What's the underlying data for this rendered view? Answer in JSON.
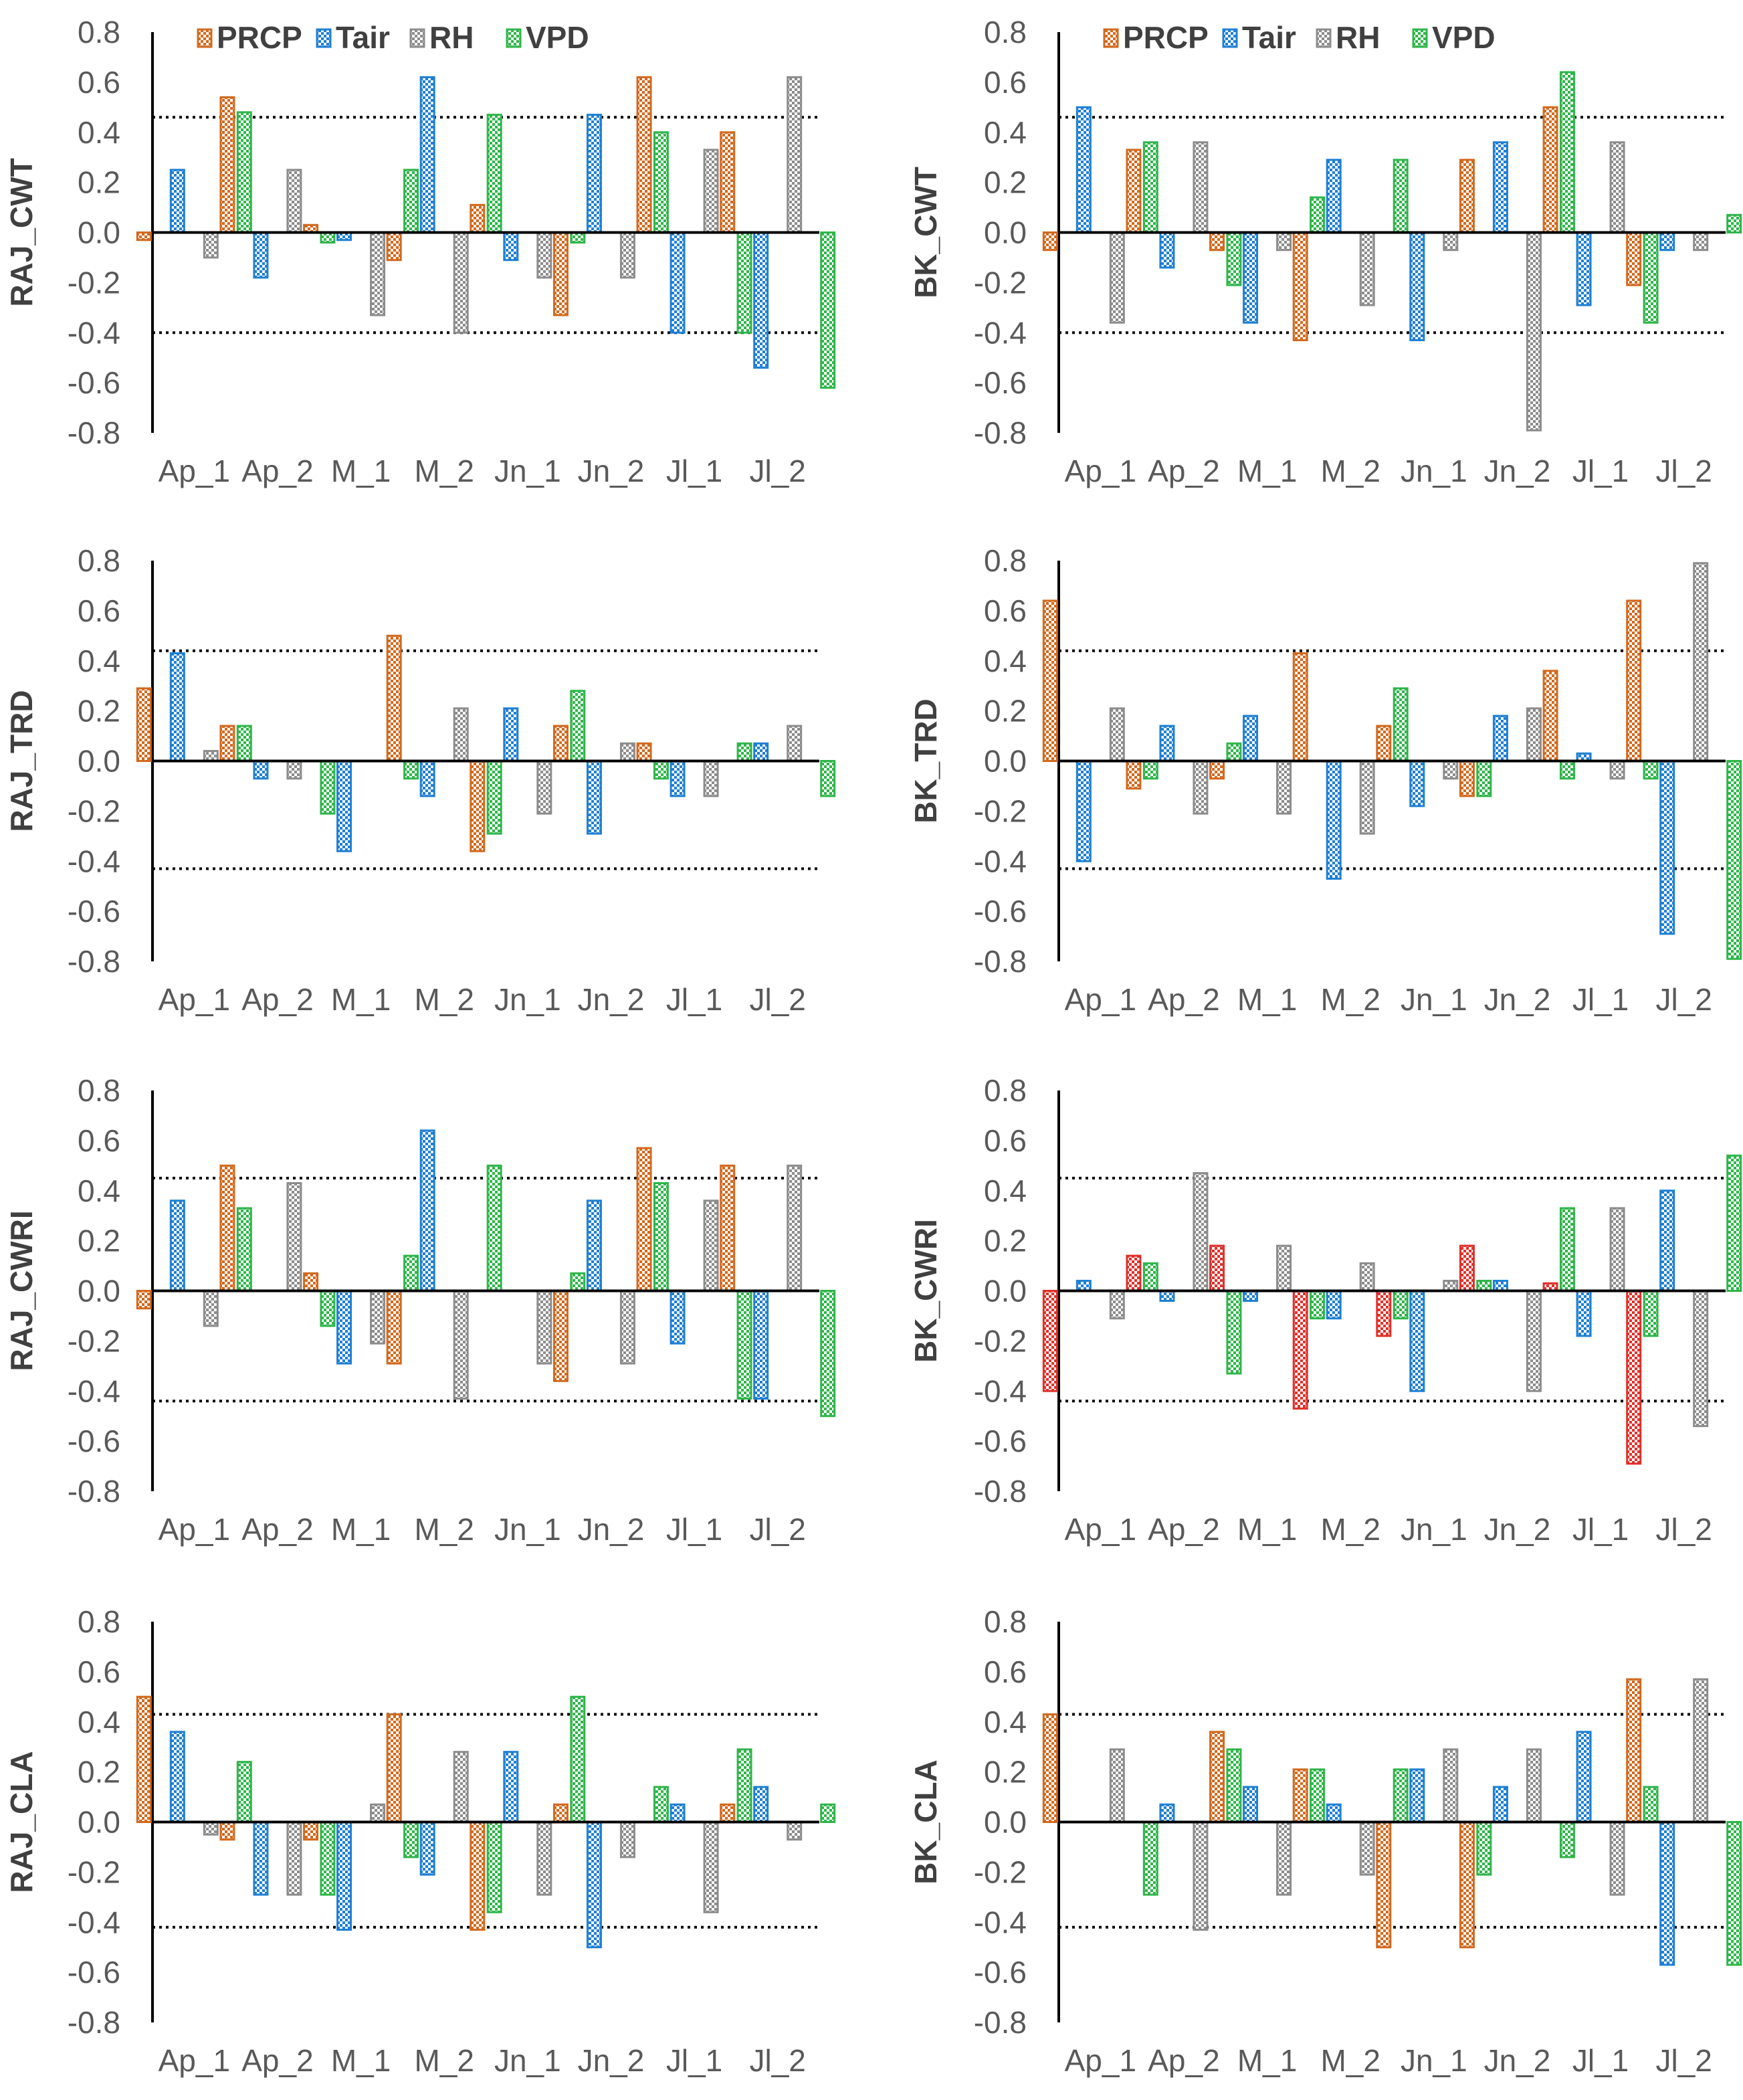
{
  "colors": {
    "PRCP": "#d2691e",
    "Tair": "#1f7fd3",
    "RH": "#8c8c8c",
    "VPD": "#2fb54a",
    "PRCP_alt": "#e0302a",
    "axis": "#000000",
    "tick": "#595959"
  },
  "chart_data": [
    {
      "type": "bar",
      "ylabel": "RAJ_CWT",
      "ylim": [
        -0.8,
        0.8
      ],
      "yticks": [
        "0.8",
        "0.6",
        "0.4",
        "0.2",
        "0.0",
        "-0.2",
        "-0.4",
        "-0.6",
        "-0.8"
      ],
      "categories": [
        "Ap_1",
        "Ap_2",
        "M_1",
        "M_2",
        "Jn_1",
        "Jn_2",
        "Jl_1",
        "Jl_2"
      ],
      "legend": [
        "PRCP",
        "Tair",
        "RH",
        "VPD"
      ],
      "thresholds": [
        0.46,
        -0.4
      ],
      "series": [
        {
          "name": "PRCP",
          "values": [
            -0.03,
            0.54,
            0.03,
            -0.11,
            0.11,
            -0.33,
            0.62,
            0.4
          ]
        },
        {
          "name": "Tair",
          "values": [
            0.25,
            -0.18,
            -0.03,
            0.62,
            -0.11,
            0.47,
            -0.4,
            -0.54
          ]
        },
        {
          "name": "RH",
          "values": [
            -0.1,
            0.25,
            -0.33,
            -0.4,
            -0.18,
            -0.18,
            0.33,
            0.62
          ]
        },
        {
          "name": "VPD",
          "values": [
            0.48,
            -0.04,
            0.25,
            0.47,
            -0.04,
            0.4,
            -0.4,
            -0.62
          ]
        }
      ]
    },
    {
      "type": "bar",
      "ylabel": "BK_CWT",
      "ylim": [
        -0.8,
        0.8
      ],
      "yticks": [
        "0.8",
        "0.6",
        "0.4",
        "0.2",
        "0.0",
        "-0.2",
        "-0.4",
        "-0.6",
        "-0.8"
      ],
      "categories": [
        "Ap_1",
        "Ap_2",
        "M_1",
        "M_2",
        "Jn_1",
        "Jn_2",
        "Jl_1",
        "Jl_2"
      ],
      "legend": [
        "PRCP",
        "Tair",
        "RH",
        "VPD"
      ],
      "thresholds": [
        0.46,
        -0.4
      ],
      "series": [
        {
          "name": "PRCP",
          "values": [
            -0.07,
            0.33,
            -0.07,
            -0.43,
            0.0,
            0.29,
            0.5,
            -0.21
          ]
        },
        {
          "name": "Tair",
          "values": [
            0.5,
            -0.14,
            -0.36,
            0.29,
            -0.43,
            0.36,
            -0.29,
            -0.07
          ]
        },
        {
          "name": "RH",
          "values": [
            -0.36,
            0.36,
            -0.07,
            -0.29,
            -0.07,
            -0.79,
            0.36,
            -0.07
          ]
        },
        {
          "name": "VPD",
          "values": [
            0.36,
            -0.21,
            0.14,
            0.29,
            0.0,
            0.64,
            -0.36,
            0.07
          ]
        }
      ]
    },
    {
      "type": "bar",
      "ylabel": "RAJ_TRD",
      "ylim": [
        -0.8,
        0.8
      ],
      "yticks": [
        "0.8",
        "0.6",
        "0.4",
        "0.2",
        "0.0",
        "-0.2",
        "-0.4",
        "-0.6",
        "-0.8"
      ],
      "categories": [
        "Ap_1",
        "Ap_2",
        "M_1",
        "M_2",
        "Jn_1",
        "Jn_2",
        "Jl_1",
        "Jl_2"
      ],
      "thresholds": [
        0.44,
        -0.43
      ],
      "series": [
        {
          "name": "PRCP",
          "values": [
            0.29,
            0.14,
            0.0,
            0.5,
            -0.36,
            0.14,
            0.07,
            0.0
          ]
        },
        {
          "name": "Tair",
          "values": [
            0.43,
            -0.07,
            -0.36,
            -0.14,
            0.21,
            -0.29,
            -0.14,
            0.07
          ]
        },
        {
          "name": "RH",
          "values": [
            0.04,
            -0.07,
            0.0,
            0.21,
            -0.21,
            0.07,
            -0.14,
            0.14
          ]
        },
        {
          "name": "VPD",
          "values": [
            0.14,
            -0.21,
            -0.07,
            -0.29,
            0.28,
            -0.07,
            0.07,
            -0.14
          ]
        }
      ]
    },
    {
      "type": "bar",
      "ylabel": "BK_TRD",
      "ylim": [
        -0.8,
        0.8
      ],
      "yticks": [
        "0.8",
        "0.6",
        "0.4",
        "0.2",
        "0.0",
        "-0.2",
        "-0.4",
        "-0.6",
        "-0.8"
      ],
      "categories": [
        "Ap_1",
        "Ap_2",
        "M_1",
        "M_2",
        "Jn_1",
        "Jn_2",
        "Jl_1",
        "Jl_2"
      ],
      "thresholds": [
        0.44,
        -0.43
      ],
      "series": [
        {
          "name": "PRCP",
          "values": [
            0.64,
            -0.11,
            -0.07,
            0.43,
            0.14,
            -0.14,
            0.36,
            0.64
          ]
        },
        {
          "name": "Tair",
          "values": [
            -0.4,
            0.14,
            0.18,
            -0.47,
            -0.18,
            0.18,
            0.03,
            -0.69
          ]
        },
        {
          "name": "RH",
          "values": [
            0.21,
            -0.21,
            -0.21,
            -0.29,
            -0.07,
            0.21,
            -0.07,
            0.79
          ]
        },
        {
          "name": "VPD",
          "values": [
            -0.07,
            0.07,
            0.0,
            0.29,
            -0.14,
            -0.07,
            -0.07,
            -0.79
          ]
        }
      ]
    },
    {
      "type": "bar",
      "ylabel": "RAJ_CWRI",
      "ylim": [
        -0.8,
        0.8
      ],
      "yticks": [
        "0.8",
        "0.6",
        "0.4",
        "0.2",
        "0.0",
        "-0.2",
        "-0.4",
        "-0.6",
        "-0.8"
      ],
      "categories": [
        "Ap_1",
        "Ap_2",
        "M_1",
        "M_2",
        "Jn_1",
        "Jn_2",
        "Jl_1",
        "Jl_2"
      ],
      "thresholds": [
        0.45,
        -0.44
      ],
      "series": [
        {
          "name": "PRCP",
          "values": [
            -0.07,
            0.5,
            0.07,
            -0.29,
            0.0,
            -0.36,
            0.57,
            0.5
          ]
        },
        {
          "name": "Tair",
          "values": [
            0.36,
            0.0,
            -0.29,
            0.64,
            0.0,
            0.36,
            -0.21,
            -0.43
          ]
        },
        {
          "name": "RH",
          "values": [
            -0.14,
            0.43,
            -0.21,
            -0.43,
            -0.29,
            -0.29,
            0.36,
            0.5
          ]
        },
        {
          "name": "VPD",
          "values": [
            0.33,
            -0.14,
            0.14,
            0.5,
            0.07,
            0.43,
            -0.43,
            -0.5
          ]
        }
      ]
    },
    {
      "type": "bar",
      "ylabel": "BK_CWRI",
      "ylim": [
        -0.8,
        0.8
      ],
      "yticks": [
        "0.8",
        "0.6",
        "0.4",
        "0.2",
        "0.0",
        "-0.2",
        "-0.4",
        "-0.6",
        "-0.8"
      ],
      "categories": [
        "Ap_1",
        "Ap_2",
        "M_1",
        "M_2",
        "Jn_1",
        "Jn_2",
        "Jl_1",
        "Jl_2"
      ],
      "thresholds": [
        0.45,
        -0.44
      ],
      "series": [
        {
          "name": "PRCP",
          "values": [
            -0.4,
            0.14,
            0.18,
            -0.47,
            -0.18,
            0.18,
            0.03,
            -0.69
          ]
        },
        {
          "name": "Tair",
          "values": [
            0.04,
            -0.04,
            -0.04,
            -0.11,
            -0.4,
            0.04,
            -0.18,
            0.4
          ]
        },
        {
          "name": "RH",
          "values": [
            -0.11,
            0.47,
            0.18,
            0.11,
            0.04,
            -0.4,
            0.33,
            -0.54
          ]
        },
        {
          "name": "VPD",
          "values": [
            0.11,
            -0.33,
            -0.11,
            -0.11,
            0.04,
            0.33,
            -0.18,
            0.54
          ]
        }
      ]
    },
    {
      "type": "bar",
      "ylabel": "RAJ_CLA",
      "ylim": [
        -0.8,
        0.8
      ],
      "yticks": [
        "0.8",
        "0.6",
        "0.4",
        "0.2",
        "0.0",
        "-0.2",
        "-0.4",
        "-0.6",
        "-0.8"
      ],
      "categories": [
        "Ap_1",
        "Ap_2",
        "M_1",
        "M_2",
        "Jn_1",
        "Jn_2",
        "Jl_1",
        "Jl_2"
      ],
      "thresholds": [
        0.43,
        -0.42
      ],
      "series": [
        {
          "name": "PRCP",
          "values": [
            0.5,
            -0.07,
            -0.07,
            0.43,
            -0.43,
            0.07,
            0.0,
            0.07
          ]
        },
        {
          "name": "Tair",
          "values": [
            0.36,
            -0.29,
            -0.43,
            -0.21,
            0.28,
            -0.5,
            0.07,
            0.14
          ]
        },
        {
          "name": "RH",
          "values": [
            -0.05,
            -0.29,
            0.07,
            0.28,
            -0.29,
            -0.14,
            -0.36,
            -0.07
          ]
        },
        {
          "name": "VPD",
          "values": [
            0.24,
            -0.29,
            -0.14,
            -0.36,
            0.5,
            0.14,
            0.29,
            0.07
          ]
        }
      ]
    },
    {
      "type": "bar",
      "ylabel": "BK_CLA",
      "ylim": [
        -0.8,
        0.8
      ],
      "yticks": [
        "0.8",
        "0.6",
        "0.4",
        "0.2",
        "0.0",
        "-0.2",
        "-0.4",
        "-0.6",
        "-0.8"
      ],
      "categories": [
        "Ap_1",
        "Ap_2",
        "M_1",
        "M_2",
        "Jn_1",
        "Jn_2",
        "Jl_1",
        "Jl_2"
      ],
      "thresholds": [
        0.43,
        -0.42
      ],
      "series": [
        {
          "name": "PRCP",
          "values": [
            0.43,
            0.0,
            0.36,
            0.21,
            -0.5,
            -0.5,
            0.0,
            0.57
          ]
        },
        {
          "name": "Tair",
          "values": [
            0.0,
            0.07,
            0.14,
            0.07,
            0.21,
            0.14,
            0.36,
            -0.57
          ]
        },
        {
          "name": "RH",
          "values": [
            0.29,
            -0.43,
            -0.29,
            -0.21,
            0.29,
            0.29,
            -0.29,
            0.57
          ]
        },
        {
          "name": "VPD",
          "values": [
            -0.29,
            0.29,
            0.21,
            0.21,
            -0.21,
            -0.14,
            0.14,
            -0.57
          ]
        }
      ]
    }
  ]
}
